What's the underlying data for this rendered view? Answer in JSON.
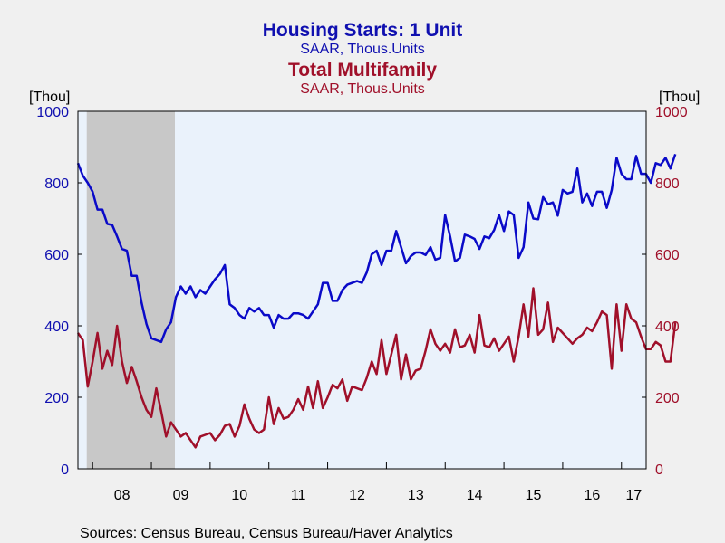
{
  "chart_data": {
    "type": "line",
    "titles": [
      {
        "title": "Housing Starts: 1 Unit",
        "subtitle": "SAAR, Thous.Units",
        "color": "#1010b0"
      },
      {
        "title": "Total Multifamily",
        "subtitle": "SAAR, Thous.Units",
        "color": "#a0102a"
      }
    ],
    "y_left": {
      "unit": "[Thou]",
      "min": 0,
      "max": 1000,
      "ticks": [
        "0",
        "200",
        "400",
        "600",
        "800",
        "1000"
      ],
      "color": "#1010b0"
    },
    "y_right": {
      "unit": "[Thou]",
      "min": 0,
      "max": 1000,
      "ticks": [
        "0",
        "200",
        "400",
        "600",
        "800",
        "1000"
      ],
      "color": "#a0102a"
    },
    "x_tick_labels": [
      "08",
      "09",
      "10",
      "11",
      "12",
      "13",
      "14",
      "15",
      "16",
      "17"
    ],
    "x_range_years": [
      2007.75,
      2017.42
    ],
    "recession_shading": {
      "start": 2007.9,
      "end": 2009.4,
      "color": "#c8c8c8"
    },
    "plot_background": "#eaf2fb",
    "grid": false,
    "source": "Sources:  Census Bureau, Census Bureau/Haver Analytics",
    "series": [
      {
        "name": "Housing Starts: 1 Unit",
        "axis": "left",
        "color": "#0a0ac8",
        "start": "2007-10",
        "frequency": "monthly",
        "values": [
          855,
          820,
          800,
          775,
          725,
          725,
          685,
          682,
          650,
          615,
          610,
          540,
          540,
          465,
          405,
          365,
          360,
          355,
          390,
          410,
          480,
          510,
          490,
          510,
          480,
          500,
          490,
          510,
          530,
          545,
          570,
          460,
          450,
          430,
          420,
          450,
          440,
          450,
          430,
          430,
          395,
          430,
          420,
          420,
          435,
          435,
          430,
          420,
          440,
          460,
          520,
          520,
          470,
          470,
          500,
          515,
          520,
          525,
          520,
          550,
          600,
          610,
          570,
          610,
          610,
          665,
          620,
          575,
          595,
          605,
          605,
          598,
          620,
          585,
          590,
          710,
          650,
          580,
          590,
          655,
          650,
          643,
          615,
          650,
          645,
          668,
          710,
          665,
          720,
          710,
          590,
          620,
          745,
          700,
          698,
          760,
          740,
          745,
          708,
          780,
          770,
          775,
          840,
          745,
          770,
          735,
          775,
          775,
          730,
          780,
          870,
          825,
          810,
          810,
          875,
          825,
          825,
          800,
          855,
          850,
          870,
          840,
          880
        ]
      },
      {
        "name": "Total Multifamily",
        "axis": "right",
        "color": "#a0102a",
        "start": "2007-10",
        "frequency": "monthly",
        "values": [
          380,
          360,
          230,
          300,
          380,
          280,
          330,
          290,
          400,
          300,
          240,
          285,
          245,
          200,
          165,
          145,
          225,
          160,
          90,
          130,
          110,
          90,
          100,
          80,
          60,
          90,
          95,
          100,
          80,
          95,
          120,
          125,
          90,
          120,
          180,
          140,
          110,
          100,
          110,
          200,
          125,
          170,
          140,
          145,
          165,
          195,
          165,
          230,
          170,
          245,
          170,
          200,
          235,
          225,
          250,
          190,
          230,
          225,
          220,
          255,
          300,
          265,
          360,
          265,
          320,
          375,
          250,
          320,
          250,
          275,
          280,
          330,
          390,
          350,
          330,
          350,
          325,
          390,
          340,
          345,
          375,
          325,
          430,
          345,
          340,
          365,
          330,
          350,
          370,
          300,
          370,
          460,
          370,
          505,
          375,
          390,
          465,
          355,
          395,
          380,
          365,
          350,
          365,
          375,
          395,
          385,
          410,
          440,
          430,
          280,
          460,
          330,
          460,
          420,
          410,
          370,
          335,
          335,
          355,
          345,
          300,
          300,
          410
        ]
      }
    ]
  }
}
